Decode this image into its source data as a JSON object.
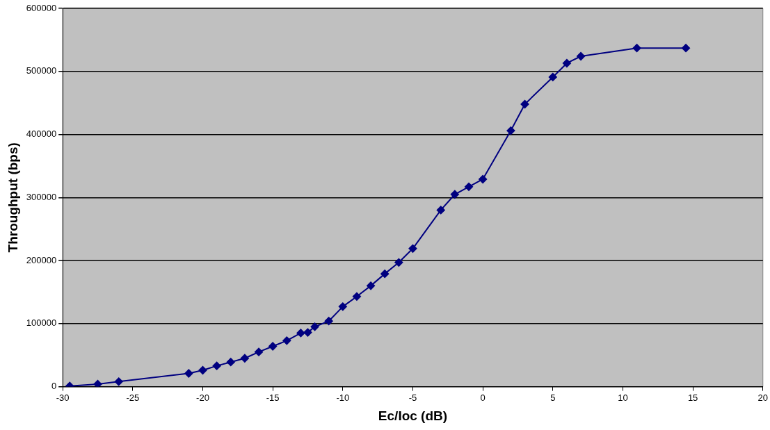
{
  "chart_data": {
    "type": "line",
    "xlabel": "Ec/Ioc (dB)",
    "ylabel": "Throughput (bps)",
    "x": [
      -29.5,
      -27.5,
      -26,
      -21,
      -20,
      -19,
      -18,
      -17,
      -16,
      -15,
      -14,
      -13,
      -12.5,
      -12,
      -11,
      -10,
      -9,
      -8,
      -7,
      -6,
      -5,
      -3,
      -2,
      -1,
      0,
      2,
      3,
      5,
      6,
      7,
      11,
      14.5
    ],
    "series": [
      {
        "color": "#000080",
        "values": [
          1000,
          4000,
          8000,
          21000,
          26000,
          33000,
          39000,
          45000,
          55000,
          64000,
          73000,
          85000,
          86000,
          95000,
          104000,
          127000,
          143000,
          160000,
          179000,
          197000,
          219000,
          280000,
          305000,
          317000,
          329000,
          406000,
          448000,
          491000,
          513000,
          524000,
          537000,
          537000
        ]
      }
    ],
    "xlim": [
      -30,
      20
    ],
    "xticks": [
      -30,
      -25,
      -20,
      -15,
      -10,
      -5,
      0,
      5,
      10,
      15,
      20
    ],
    "ylim": [
      0,
      600000
    ],
    "yticks": [
      0,
      100000,
      200000,
      300000,
      400000,
      500000,
      600000
    ],
    "grid": "y",
    "legend": false,
    "marker": "diamond",
    "line_style": "solid"
  }
}
